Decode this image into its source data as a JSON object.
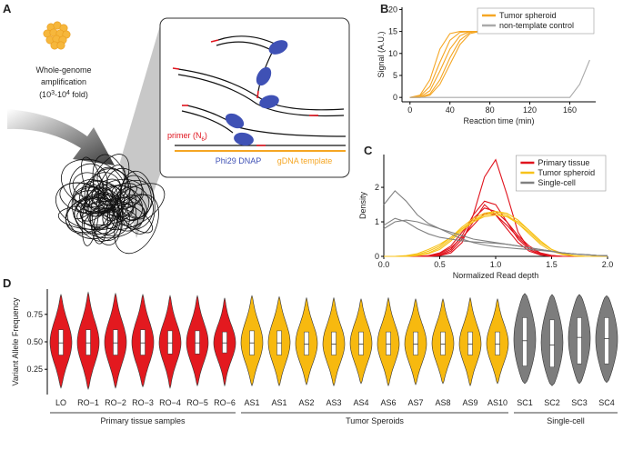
{
  "panel_labels": [
    "A",
    "B",
    "C",
    "D"
  ],
  "diagram": {
    "title_lines": [
      "Whole-genome",
      "amplification"
    ],
    "fold": [
      "(10",
      "3",
      "-10",
      "4",
      " fold)"
    ],
    "primer": [
      "primer (N",
      "6",
      ")"
    ],
    "enzyme": "Phi29 DNAP",
    "template": "gDNA template"
  },
  "chart_data": [
    {
      "type": "line",
      "xlabel": "Reaction time (min)",
      "ylabel": "Signal (A.U.)",
      "x": [
        0,
        10,
        20,
        30,
        40,
        50,
        60,
        70,
        80,
        90,
        100,
        110,
        120,
        130,
        140,
        150,
        160,
        170,
        180
      ],
      "xlim": [
        -8,
        186
      ],
      "xticks": [
        0,
        40,
        80,
        120,
        160
      ],
      "ylim": [
        -1,
        20.5
      ],
      "yticks": [
        0,
        5,
        10,
        15,
        20
      ],
      "legend": "upper right",
      "series": [
        {
          "name": "Tumor spheroid",
          "color": "#f5a623",
          "curves": [
            [
              0,
              0.5,
              4,
              11,
              14.5,
              15,
              15,
              15,
              15,
              15,
              15,
              15,
              15,
              15,
              15,
              15,
              15,
              15,
              15
            ],
            [
              0,
              0.3,
              2.5,
              8,
              13,
              14.8,
              15,
              15,
              15,
              15,
              15,
              15,
              15,
              15,
              15,
              15,
              15,
              15,
              15
            ],
            [
              0,
              0.1,
              1.5,
              6,
              11,
              14,
              15,
              15,
              15,
              15,
              15,
              15,
              15,
              15,
              15,
              15,
              15,
              15,
              15
            ],
            [
              0,
              0,
              0.8,
              4,
              9,
              13,
              14.8,
              15,
              15,
              15,
              15,
              15,
              15,
              15,
              15,
              15,
              15,
              15,
              15
            ],
            [
              0,
              0,
              0.5,
              3,
              7.5,
              12,
              14.5,
              15,
              15,
              15,
              15,
              15,
              15,
              15,
              15,
              15,
              15,
              15,
              15
            ]
          ]
        },
        {
          "name": "non-template control",
          "color": "#aaaaaa",
          "curves": [
            [
              0,
              0,
              0,
              0,
              0,
              0,
              0,
              0,
              0,
              0,
              0,
              0,
              0,
              0,
              0,
              0,
              0,
              3,
              8.5
            ]
          ]
        }
      ]
    },
    {
      "type": "line",
      "xlabel": "Normalized Read depth",
      "ylabel": "Density",
      "x": [
        0,
        0.1,
        0.2,
        0.3,
        0.4,
        0.5,
        0.6,
        0.7,
        0.8,
        0.9,
        1.0,
        1.1,
        1.2,
        1.3,
        1.4,
        1.5,
        1.6,
        1.7,
        1.8,
        1.9,
        2.0
      ],
      "xlim": [
        0,
        2
      ],
      "xticks": [
        {
          "value": 0,
          "label": "0.0"
        },
        0.5,
        {
          "value": 1,
          "label": "1.0"
        },
        1.5,
        {
          "value": 2,
          "label": "2.0"
        }
      ],
      "ylim": [
        0,
        2.95
      ],
      "yticks": [
        0,
        1,
        2
      ],
      "legend": "upper right",
      "series": [
        {
          "name": "Primary tissue",
          "color": "#e0141e",
          "curves": [
            [
              0,
              0,
              0,
              0,
              0,
              0.02,
              0.1,
              0.4,
              1.2,
              2.3,
              2.8,
              1.8,
              0.7,
              0.2,
              0.05,
              0,
              0,
              0,
              0,
              0,
              0
            ],
            [
              0,
              0,
              0,
              0,
              0,
              0.05,
              0.2,
              0.6,
              1.2,
              1.6,
              1.5,
              1.0,
              0.5,
              0.2,
              0.05,
              0.01,
              0,
              0,
              0,
              0,
              0
            ],
            [
              0,
              0,
              0,
              0,
              0.02,
              0.1,
              0.3,
              0.7,
              1.1,
              1.4,
              1.3,
              1.0,
              0.6,
              0.3,
              0.1,
              0.03,
              0,
              0,
              0,
              0,
              0
            ],
            [
              0,
              0,
              0,
              0,
              0,
              0.03,
              0.15,
              0.5,
              1.0,
              1.5,
              1.2,
              0.8,
              0.4,
              0.15,
              0.04,
              0,
              0,
              0,
              0,
              0,
              0
            ],
            [
              0,
              0,
              0,
              0,
              0.01,
              0.08,
              0.25,
              0.55,
              0.9,
              1.25,
              1.2,
              0.9,
              0.55,
              0.25,
              0.08,
              0.02,
              0,
              0,
              0,
              0,
              0
            ]
          ]
        },
        {
          "name": "Tumor spheroid",
          "color": "#f7c21a",
          "curves": [
            [
              0,
              0,
              0.01,
              0.05,
              0.15,
              0.3,
              0.55,
              0.85,
              1.1,
              1.25,
              1.3,
              1.2,
              0.95,
              0.65,
              0.35,
              0.15,
              0.05,
              0.01,
              0,
              0,
              0
            ],
            [
              0,
              0,
              0,
              0.03,
              0.1,
              0.25,
              0.5,
              0.8,
              1.05,
              1.2,
              1.25,
              1.15,
              0.95,
              0.7,
              0.4,
              0.2,
              0.07,
              0.02,
              0,
              0,
              0
            ],
            [
              0,
              0,
              0.02,
              0.08,
              0.2,
              0.35,
              0.55,
              0.8,
              1.0,
              1.15,
              1.2,
              1.15,
              1.0,
              0.75,
              0.45,
              0.2,
              0.08,
              0.02,
              0,
              0,
              0
            ],
            [
              0,
              0,
              0,
              0.02,
              0.08,
              0.2,
              0.45,
              0.75,
              1.0,
              1.2,
              1.3,
              1.25,
              1.05,
              0.75,
              0.45,
              0.2,
              0.06,
              0.01,
              0,
              0,
              0
            ]
          ]
        },
        {
          "name": "Single-cell",
          "color": "#808080",
          "curves": [
            [
              1.5,
              1.9,
              1.6,
              1.2,
              0.95,
              0.8,
              0.7,
              0.6,
              0.5,
              0.45,
              0.4,
              0.35,
              0.3,
              0.25,
              0.2,
              0.15,
              0.1,
              0.07,
              0.05,
              0.03,
              0.02
            ],
            [
              0.9,
              1.1,
              1.0,
              0.8,
              0.65,
              0.55,
              0.5,
              0.45,
              0.42,
              0.4,
              0.38,
              0.35,
              0.3,
              0.25,
              0.2,
              0.15,
              0.1,
              0.07,
              0.05,
              0.03,
              0.02
            ],
            [
              0.8,
              1.0,
              1.05,
              1.0,
              0.9,
              0.8,
              0.65,
              0.5,
              0.4,
              0.33,
              0.28,
              0.25,
              0.22,
              0.2,
              0.17,
              0.14,
              0.1,
              0.07,
              0.05,
              0.03,
              0.02
            ]
          ]
        }
      ]
    },
    {
      "type": "violin",
      "ylabel": "Variant Allele Frequency",
      "ylim": [
        0.02,
        0.98
      ],
      "yticks": [
        0.25,
        {
          "value": 0.5,
          "label": "0.50"
        },
        0.75
      ],
      "series": [
        {
          "name": "Primary tissue samples",
          "color": "#e3191f",
          "categories": [
            "LO",
            "RO−1",
            "RO−2",
            "RO−3",
            "RO−4",
            "RO−5",
            "RO−6"
          ],
          "min": [
            0.08,
            0.07,
            0.08,
            0.09,
            0.08,
            0.1,
            0.1
          ],
          "q1": [
            0.38,
            0.38,
            0.38,
            0.38,
            0.39,
            0.39,
            0.4
          ],
          "median": [
            0.49,
            0.49,
            0.49,
            0.49,
            0.49,
            0.49,
            0.49
          ],
          "q3": [
            0.61,
            0.61,
            0.61,
            0.61,
            0.6,
            0.6,
            0.59
          ],
          "max": [
            0.93,
            0.95,
            0.94,
            0.93,
            0.92,
            0.92,
            0.9
          ]
        },
        {
          "name": "Tumor Speroids",
          "color": "#f7b90f",
          "categories": [
            "AS1",
            "AS1",
            "AS2",
            "AS3",
            "AS4",
            "AS6",
            "AS7",
            "AS8",
            "AS9",
            "AS10"
          ],
          "min": [
            0.1,
            0.1,
            0.11,
            0.1,
            0.12,
            0.1,
            0.11,
            0.12,
            0.1,
            0.12
          ],
          "q1": [
            0.38,
            0.38,
            0.38,
            0.38,
            0.38,
            0.38,
            0.38,
            0.38,
            0.38,
            0.38
          ],
          "median": [
            0.49,
            0.49,
            0.48,
            0.48,
            0.48,
            0.48,
            0.48,
            0.48,
            0.48,
            0.48
          ],
          "q3": [
            0.6,
            0.6,
            0.59,
            0.59,
            0.59,
            0.59,
            0.59,
            0.59,
            0.59,
            0.59
          ],
          "max": [
            0.92,
            0.91,
            0.9,
            0.9,
            0.89,
            0.9,
            0.89,
            0.89,
            0.9,
            0.89
          ]
        },
        {
          "name": "Single-cell",
          "color": "#7d7d7d",
          "categories": [
            "SC1",
            "SC2",
            "SC3",
            "SC4"
          ],
          "min": [
            0.12,
            0.1,
            0.12,
            0.13
          ],
          "q1": [
            0.28,
            0.27,
            0.3,
            0.3
          ],
          "median": [
            0.51,
            0.47,
            0.54,
            0.53
          ],
          "q3": [
            0.72,
            0.7,
            0.72,
            0.72
          ],
          "max": [
            0.94,
            0.93,
            0.93,
            0.92
          ]
        }
      ]
    }
  ]
}
